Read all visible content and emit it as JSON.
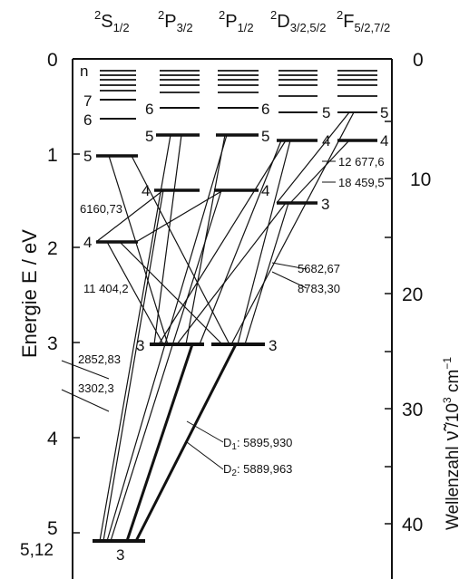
{
  "columns": {
    "s": "S",
    "s_sub": "1/2",
    "p32": "P",
    "p32_sub": "3/2",
    "p12": "P",
    "p12_sub": "1/2",
    "d": "D",
    "d_sub": "3/2,5/2",
    "f": "F",
    "f_sub": "5/2,7/2",
    "sup": "2"
  },
  "left_axis": {
    "label": "Energie  E / eV",
    "ticks": [
      "0",
      "1",
      "2",
      "3",
      "4",
      "5"
    ],
    "extra_tick": "5,12"
  },
  "right_axis": {
    "label_prefix": "Wellenzahl",
    "label_nu": "ν̃",
    "label_unit": "/10",
    "label_exp": "3",
    "label_cm": " cm",
    "label_cm_exp": "−1",
    "ticks": [
      "0",
      "10",
      "20",
      "30",
      "40"
    ]
  },
  "level_labels": {
    "n": "n",
    "s7": "7",
    "s6": "6",
    "s5": "5",
    "s4": "4",
    "s3": "3",
    "p32_6": "6",
    "p32_5": "5",
    "p32_4": "4",
    "p32_3": "3",
    "p12_6": "6",
    "p12_5": "5",
    "p12_4": "4",
    "p12_3": "3",
    "d5": "5",
    "d4": "4",
    "d3": "3",
    "f5": "5",
    "f4": "4"
  },
  "wavelengths": {
    "w6160": "6160,73",
    "w11404": "11 404,2",
    "w2852": "2852,83",
    "w3302": "3302,3",
    "w12677": "12 677,6",
    "w18459": "18 459,5",
    "w5682": "5682,67",
    "w8783": "8783,30",
    "d1_name": "D",
    "d1_sub": "1",
    "d1_val": ": 5895,930",
    "d2_name": "D",
    "d2_sub": "2",
    "d2_val": ": 5889,963"
  }
}
